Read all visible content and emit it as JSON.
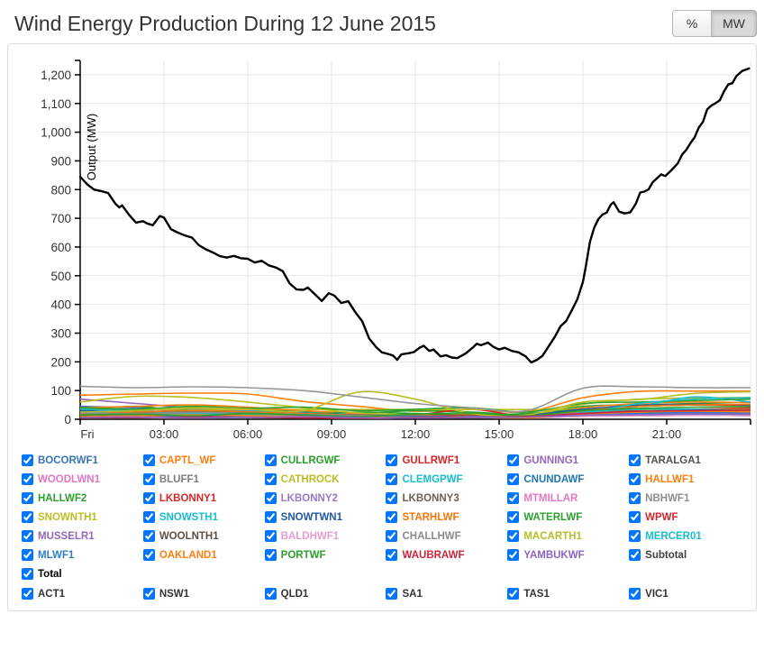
{
  "header": {
    "title": "Wind Energy Production During 12 June 2015",
    "unit_toggle": {
      "percent_label": "%",
      "mw_label": "MW",
      "active": "MW"
    }
  },
  "chart_data": {
    "type": "line",
    "title": "Wind Energy Production During 12 June 2015",
    "xlabel": "",
    "ylabel": "Output (MW)",
    "x_tick_hours": [
      0,
      3,
      6,
      9,
      12,
      15,
      18,
      21
    ],
    "x_tick_labels": [
      "Fri",
      "03:00",
      "06:00",
      "09:00",
      "12:00",
      "15:00",
      "18:00",
      "21:00"
    ],
    "xlim_hours": [
      0,
      24
    ],
    "ylim": [
      0,
      1250
    ],
    "y_tick_step": 100,
    "grid": true,
    "grid_color": "#e7e7e7",
    "axis_color": "#000000",
    "tick_label_color": "#333333",
    "total_series": {
      "name": "Total",
      "color": "#000000",
      "points": [
        [
          0,
          845
        ],
        [
          0.25,
          818
        ],
        [
          0.5,
          800
        ],
        [
          0.75,
          795
        ],
        [
          1,
          788
        ],
        [
          1.25,
          752
        ],
        [
          1.4,
          738
        ],
        [
          1.5,
          745
        ],
        [
          1.75,
          712
        ],
        [
          2,
          685
        ],
        [
          2.25,
          690
        ],
        [
          2.4,
          682
        ],
        [
          2.6,
          676
        ],
        [
          2.85,
          708
        ],
        [
          3,
          703
        ],
        [
          3.25,
          662
        ],
        [
          3.5,
          650
        ],
        [
          3.75,
          640
        ],
        [
          4,
          633
        ],
        [
          4.25,
          606
        ],
        [
          4.5,
          592
        ],
        [
          4.75,
          581
        ],
        [
          5,
          568
        ],
        [
          5.25,
          563
        ],
        [
          5.5,
          569
        ],
        [
          5.75,
          561
        ],
        [
          6,
          559
        ],
        [
          6.25,
          546
        ],
        [
          6.5,
          552
        ],
        [
          6.75,
          536
        ],
        [
          7,
          529
        ],
        [
          7.25,
          516
        ],
        [
          7.5,
          473
        ],
        [
          7.75,
          452
        ],
        [
          8,
          451
        ],
        [
          8.15,
          459
        ],
        [
          8.4,
          436
        ],
        [
          8.65,
          412
        ],
        [
          8.9,
          439
        ],
        [
          9.1,
          431
        ],
        [
          9.35,
          405
        ],
        [
          9.6,
          411
        ],
        [
          9.85,
          373
        ],
        [
          10.1,
          341
        ],
        [
          10.35,
          281
        ],
        [
          10.6,
          251
        ],
        [
          10.8,
          233
        ],
        [
          11,
          228
        ],
        [
          11.2,
          222
        ],
        [
          11.35,
          207
        ],
        [
          11.5,
          226
        ],
        [
          11.75,
          230
        ],
        [
          11.95,
          234
        ],
        [
          12.15,
          249
        ],
        [
          12.3,
          256
        ],
        [
          12.5,
          238
        ],
        [
          12.65,
          243
        ],
        [
          12.9,
          219
        ],
        [
          13.1,
          223
        ],
        [
          13.3,
          215
        ],
        [
          13.5,
          213
        ],
        [
          13.8,
          229
        ],
        [
          14.05,
          249
        ],
        [
          14.2,
          263
        ],
        [
          14.35,
          258
        ],
        [
          14.6,
          267
        ],
        [
          14.8,
          252
        ],
        [
          15,
          243
        ],
        [
          15.2,
          249
        ],
        [
          15.45,
          238
        ],
        [
          15.7,
          233
        ],
        [
          15.95,
          219
        ],
        [
          16.15,
          198
        ],
        [
          16.35,
          207
        ],
        [
          16.55,
          221
        ],
        [
          16.75,
          251
        ],
        [
          17,
          288
        ],
        [
          17.2,
          324
        ],
        [
          17.4,
          342
        ],
        [
          17.6,
          379
        ],
        [
          17.8,
          418
        ],
        [
          18,
          478
        ],
        [
          18.1,
          530
        ],
        [
          18.25,
          618
        ],
        [
          18.4,
          666
        ],
        [
          18.55,
          697
        ],
        [
          18.7,
          713
        ],
        [
          18.85,
          720
        ],
        [
          19,
          748
        ],
        [
          19.1,
          756
        ],
        [
          19.3,
          723
        ],
        [
          19.5,
          717
        ],
        [
          19.7,
          721
        ],
        [
          19.9,
          752
        ],
        [
          20.05,
          790
        ],
        [
          20.2,
          793
        ],
        [
          20.35,
          801
        ],
        [
          20.5,
          826
        ],
        [
          20.65,
          839
        ],
        [
          20.8,
          853
        ],
        [
          20.95,
          847
        ],
        [
          21.1,
          861
        ],
        [
          21.25,
          876
        ],
        [
          21.4,
          892
        ],
        [
          21.55,
          922
        ],
        [
          21.7,
          938
        ],
        [
          21.85,
          962
        ],
        [
          22,
          982
        ],
        [
          22.15,
          1016
        ],
        [
          22.3,
          1036
        ],
        [
          22.45,
          1079
        ],
        [
          22.6,
          1093
        ],
        [
          22.75,
          1101
        ],
        [
          22.9,
          1111
        ],
        [
          23.05,
          1142
        ],
        [
          23.2,
          1166
        ],
        [
          23.35,
          1171
        ],
        [
          23.5,
          1196
        ],
        [
          23.7,
          1213
        ],
        [
          23.95,
          1222
        ]
      ]
    },
    "sample_hours": [
      0,
      2,
      4,
      6,
      8,
      10,
      12,
      14,
      16,
      18,
      20,
      22,
      24
    ],
    "series": [
      {
        "name": "BOCORWF1",
        "color": "#3a76b8",
        "values": [
          45,
          40,
          35,
          30,
          25,
          18,
          12,
          10,
          8,
          20,
          30,
          35,
          38
        ]
      },
      {
        "name": "CAPTL_WF",
        "color": "#ff7f0e",
        "values": [
          84,
          88,
          91,
          88,
          62,
          45,
          28,
          34,
          26,
          75,
          97,
          98,
          98
        ]
      },
      {
        "name": "CULLRGWF",
        "color": "#2ca02c",
        "values": [
          30,
          45,
          25,
          35,
          28,
          22,
          30,
          25,
          18,
          45,
          50,
          55,
          60
        ]
      },
      {
        "name": "GULLRWF1",
        "color": "#d62728",
        "values": [
          25,
          20,
          15,
          10,
          12,
          8,
          15,
          35,
          10,
          25,
          30,
          35,
          40
        ]
      },
      {
        "name": "GUNNING1",
        "color": "#9467bd",
        "values": [
          70,
          55,
          40,
          30,
          20,
          12,
          8,
          6,
          8,
          15,
          22,
          28,
          30
        ]
      },
      {
        "name": "TARALGA1",
        "color": "#55514b",
        "values": [
          18,
          16,
          20,
          17,
          14,
          10,
          8,
          6,
          8,
          16,
          22,
          25,
          24
        ]
      },
      {
        "name": "WOODLWN1",
        "color": "#e377c2",
        "values": [
          10,
          8,
          12,
          9,
          7,
          5,
          6,
          8,
          5,
          12,
          16,
          18,
          17
        ]
      },
      {
        "name": "BLUFF1",
        "color": "#7f7f7f",
        "values": [
          12,
          10,
          14,
          11,
          9,
          7,
          6,
          8,
          6,
          14,
          18,
          20,
          19
        ]
      },
      {
        "name": "CATHROCK",
        "color": "#bcbd22",
        "values": [
          34,
          34,
          34,
          34,
          34,
          34,
          34,
          34,
          34,
          34,
          34,
          34,
          34
        ]
      },
      {
        "name": "CLEMGPWF",
        "color": "#17becf",
        "values": [
          35,
          30,
          25,
          28,
          22,
          18,
          15,
          12,
          10,
          25,
          35,
          35,
          30
        ]
      },
      {
        "name": "CNUNDAWF",
        "color": "#1f77b4",
        "values": [
          25,
          22,
          28,
          24,
          20,
          15,
          12,
          14,
          10,
          22,
          28,
          32,
          30
        ]
      },
      {
        "name": "HALLWF1",
        "color": "#ff7f0e",
        "values": [
          40,
          45,
          50,
          42,
          30,
          20,
          15,
          18,
          12,
          40,
          55,
          60,
          58
        ]
      },
      {
        "name": "HALLWF2",
        "color": "#2ca02c",
        "values": [
          20,
          25,
          30,
          22,
          18,
          25,
          20,
          15,
          20,
          35,
          45,
          50,
          48
        ]
      },
      {
        "name": "LKBONNY1",
        "color": "#d62728",
        "values": [
          8,
          10,
          12,
          9,
          7,
          6,
          8,
          10,
          12,
          30,
          45,
          50,
          48
        ]
      },
      {
        "name": "LKBONNY2",
        "color": "#9c79c7",
        "values": [
          12,
          15,
          10,
          8,
          6,
          10,
          12,
          8,
          6,
          18,
          25,
          28,
          26
        ]
      },
      {
        "name": "LKBONNY3",
        "color": "#6e5f54",
        "values": [
          10,
          12,
          8,
          10,
          7,
          5,
          8,
          6,
          5,
          12,
          16,
          18,
          17
        ]
      },
      {
        "name": "MTMILLAR",
        "color": "#e377c2",
        "values": [
          8,
          10,
          7,
          9,
          6,
          8,
          5,
          6,
          8,
          14,
          18,
          20,
          19
        ]
      },
      {
        "name": "NBHWF1",
        "color": "#8c8c8c",
        "values": [
          20,
          18,
          22,
          19,
          15,
          12,
          10,
          8,
          10,
          20,
          26,
          28,
          27
        ]
      },
      {
        "name": "SNOWNTH1",
        "color": "#bcbd22",
        "values": [
          60,
          80,
          76,
          60,
          40,
          22,
          15,
          10,
          12,
          52,
          70,
          74,
          76
        ]
      },
      {
        "name": "SNOWSTH1",
        "color": "#17becf",
        "values": [
          25,
          28,
          22,
          18,
          15,
          12,
          10,
          8,
          12,
          30,
          45,
          78,
          60
        ]
      },
      {
        "name": "SNOWTWN1",
        "color": "#2058a3",
        "values": [
          30,
          26,
          30,
          25,
          20,
          15,
          12,
          10,
          14,
          35,
          48,
          52,
          50
        ]
      },
      {
        "name": "STARHLWF",
        "color": "#f5760b",
        "values": [
          20,
          25,
          30,
          26,
          20,
          14,
          10,
          12,
          8,
          30,
          45,
          50,
          52
        ]
      },
      {
        "name": "WATERLWF",
        "color": "#2ca02c",
        "values": [
          40,
          35,
          45,
          38,
          42,
          30,
          35,
          40,
          25,
          55,
          60,
          65,
          70
        ]
      },
      {
        "name": "WPWF",
        "color": "#d62728",
        "values": [
          14,
          13,
          12,
          12,
          11,
          10,
          12,
          13,
          11,
          14,
          15,
          16,
          15
        ]
      },
      {
        "name": "MUSSELR1",
        "color": "#9467bd",
        "values": [
          8,
          6,
          9,
          7,
          5,
          8,
          6,
          5,
          7,
          12,
          18,
          22,
          20
        ]
      },
      {
        "name": "WOOLNTH1",
        "color": "#5d4e43",
        "values": [
          6,
          5,
          8,
          6,
          4,
          6,
          5,
          4,
          6,
          10,
          12,
          14,
          13
        ]
      },
      {
        "name": "BALDHWF1",
        "color": "#eb9cce",
        "values": [
          5,
          6,
          4,
          7,
          5,
          3,
          5,
          6,
          4,
          10,
          12,
          14,
          13
        ]
      },
      {
        "name": "CHALLHWF",
        "color": "#8c8c8c",
        "values": [
          22,
          20,
          24,
          21,
          17,
          13,
          11,
          9,
          11,
          22,
          28,
          30,
          29
        ]
      },
      {
        "name": "MACARTH1",
        "color": "#b5bd2a",
        "values": [
          25,
          30,
          40,
          35,
          30,
          95,
          70,
          20,
          15,
          60,
          68,
          90,
          96
        ]
      },
      {
        "name": "MERCER01",
        "color": "#17becf",
        "values": [
          15,
          12,
          18,
          14,
          10,
          8,
          6,
          10,
          8,
          20,
          55,
          70,
          75
        ]
      },
      {
        "name": "MLWF1",
        "color": "#2f7ec2",
        "values": [
          12,
          14,
          10,
          12,
          8,
          6,
          10,
          8,
          6,
          15,
          20,
          24,
          22
        ]
      },
      {
        "name": "OAKLAND1",
        "color": "#ff7f0e",
        "values": [
          10,
          12,
          15,
          13,
          10,
          8,
          6,
          8,
          5,
          18,
          25,
          28,
          26
        ]
      },
      {
        "name": "PORTWF",
        "color": "#2ca02c",
        "values": [
          15,
          18,
          12,
          20,
          15,
          10,
          18,
          22,
          12,
          30,
          38,
          42,
          45
        ]
      },
      {
        "name": "WAUBRAWF",
        "color": "#c9253c",
        "values": [
          5,
          6,
          8,
          7,
          5,
          4,
          6,
          8,
          10,
          20,
          28,
          30,
          32
        ]
      },
      {
        "name": "YAMBUKWF",
        "color": "#8a63c4",
        "values": [
          6,
          8,
          5,
          7,
          9,
          6,
          4,
          6,
          8,
          14,
          16,
          18,
          17
        ]
      },
      {
        "name": "Subtotal",
        "color": "#969696",
        "legend_color": "#3f3f3f",
        "values": [
          115,
          110,
          113,
          110,
          100,
          78,
          55,
          40,
          30,
          108,
          113,
          110,
          110
        ]
      }
    ]
  },
  "legend": {
    "checkboxes_checked": true,
    "total_label": "Total",
    "total_color": "#000000",
    "regions": [
      "ACT1",
      "NSW1",
      "QLD1",
      "SA1",
      "TAS1",
      "VIC1"
    ],
    "region_color": "#333333"
  }
}
